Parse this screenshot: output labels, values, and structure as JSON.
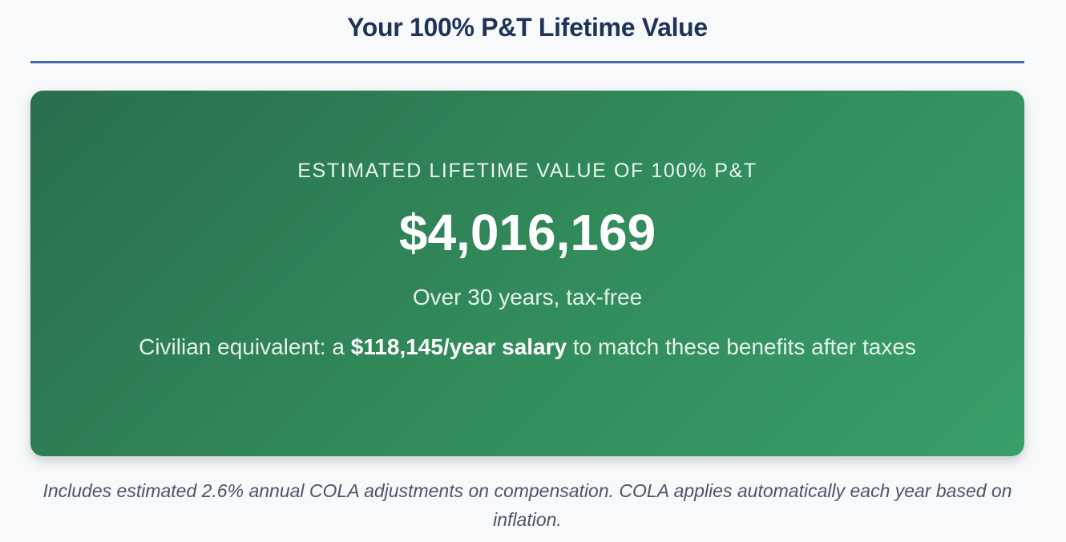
{
  "header": {
    "title": "Your 100% P&T Lifetime Value"
  },
  "value_card": {
    "eyebrow": "ESTIMATED LIFETIME VALUE OF 100% P&T",
    "amount": "$4,016,169",
    "subtitle": "Over 30 years, tax-free",
    "civilian_prefix": "Civilian equivalent: a ",
    "civilian_salary": "$118,145/year salary",
    "civilian_suffix": " to match these benefits after taxes"
  },
  "footnote": {
    "text": "Includes estimated 2.6% annual COLA adjustments on compensation. COLA applies automatically each year based on inflation."
  },
  "colors": {
    "title": "#1e3358",
    "rule": "#3a6e9f",
    "card_gradient_start": "#2a6e4d",
    "card_gradient_end": "#399e69",
    "footnote": "#4a5568"
  }
}
